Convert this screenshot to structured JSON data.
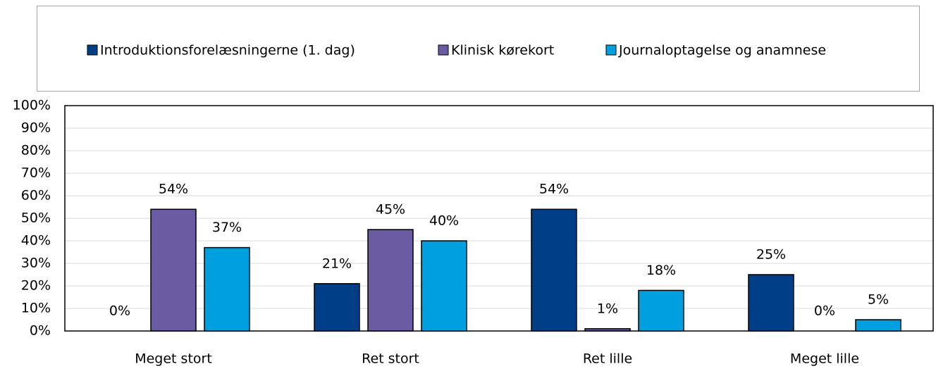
{
  "chart_data": {
    "type": "bar",
    "categories": [
      "Meget stort",
      "Ret stort",
      "Ret lille",
      "Meget lille"
    ],
    "series": [
      {
        "name": "Introduktionsforelæsningerne (1. dag)",
        "color": "#003f87",
        "values": [
          0,
          21,
          54,
          25
        ],
        "value_labels": [
          "0%",
          "21%",
          "54%",
          "25%"
        ]
      },
      {
        "name": "Klinisk kørekort",
        "color": "#6a5ba3",
        "values": [
          54,
          45,
          1,
          0
        ],
        "value_labels": [
          "54%",
          "45%",
          "1%",
          "0%"
        ]
      },
      {
        "name": "Journaloptagelse og anamnese",
        "color": "#009fdf",
        "values": [
          37,
          40,
          18,
          5
        ],
        "value_labels": [
          "37%",
          "40%",
          "18%",
          "5%"
        ]
      }
    ],
    "ylim": [
      0,
      100
    ],
    "yticks": [
      {
        "value": 0,
        "label": "0%"
      },
      {
        "value": 10,
        "label": "10%"
      },
      {
        "value": 20,
        "label": "20%"
      },
      {
        "value": 30,
        "label": "30%"
      },
      {
        "value": 40,
        "label": "40%"
      },
      {
        "value": 50,
        "label": "50%"
      },
      {
        "value": 60,
        "label": "60%"
      },
      {
        "value": 70,
        "label": "70%"
      },
      {
        "value": 80,
        "label": "80%"
      },
      {
        "value": 90,
        "label": "90%"
      },
      {
        "value": 100,
        "label": "100%"
      }
    ],
    "grid": true,
    "legend": "top"
  }
}
